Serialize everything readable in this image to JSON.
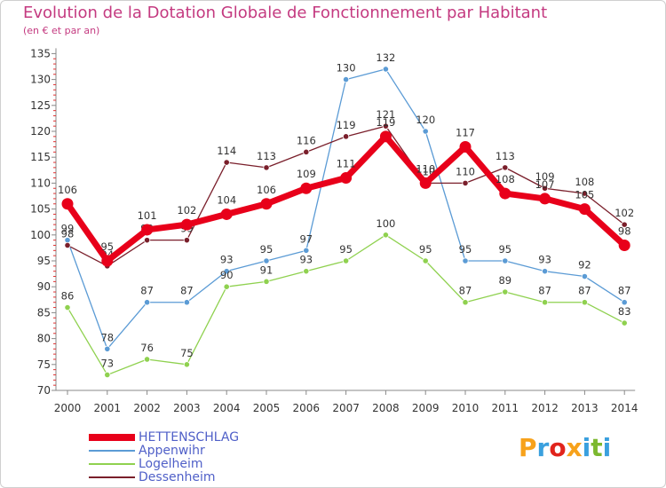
{
  "header": {
    "title": "Evolution de la Dotation Globale de Fonctionnement par Habitant",
    "subtitle": "(en € et par an)"
  },
  "logo": {
    "text": "Proxiti",
    "colors": [
      "#f7a21b",
      "#3aa0de",
      "#e1241c",
      "#f7a21b",
      "#3aa0de",
      "#7cb82f",
      "#3aa0de"
    ]
  },
  "chart_data": {
    "type": "line",
    "title": "Evolution de la Dotation Globale de Fonctionnement par Habitant",
    "subtitle": "(en € et par an)",
    "x": [
      "2000",
      "2001",
      "2002",
      "2003",
      "2004",
      "2005",
      "2006",
      "2007",
      "2008",
      "2009",
      "2010",
      "2011",
      "2012",
      "2013",
      "2014"
    ],
    "ylim": [
      70,
      135
    ],
    "yticks": [
      70,
      75,
      80,
      85,
      90,
      95,
      100,
      105,
      110,
      115,
      120,
      125,
      130,
      135
    ],
    "grid": false,
    "legend_position": "bottom-left",
    "series": [
      {
        "name": "HETTENSCHLAG",
        "color": "#e8001a",
        "values": [
          106,
          95,
          101,
          102,
          104,
          106,
          109,
          111,
          119,
          110,
          117,
          108,
          107,
          105,
          98
        ],
        "emphasis": true
      },
      {
        "name": "Appenwihr",
        "color": "#5b9bd5",
        "values": [
          99,
          78,
          87,
          87,
          93,
          95,
          97,
          130,
          132,
          120,
          95,
          95,
          93,
          92,
          87
        ]
      },
      {
        "name": "Logelheim",
        "color": "#8fd14f",
        "values": [
          86,
          73,
          76,
          75,
          90,
          91,
          93,
          95,
          100,
          95,
          87,
          89,
          87,
          87,
          83
        ]
      },
      {
        "name": "Dessenheim",
        "color": "#7a1f2b",
        "values": [
          98,
          94,
          99,
          99,
          114,
          113,
          116,
          119,
          121,
          110,
          110,
          113,
          109,
          108,
          102
        ]
      }
    ]
  }
}
